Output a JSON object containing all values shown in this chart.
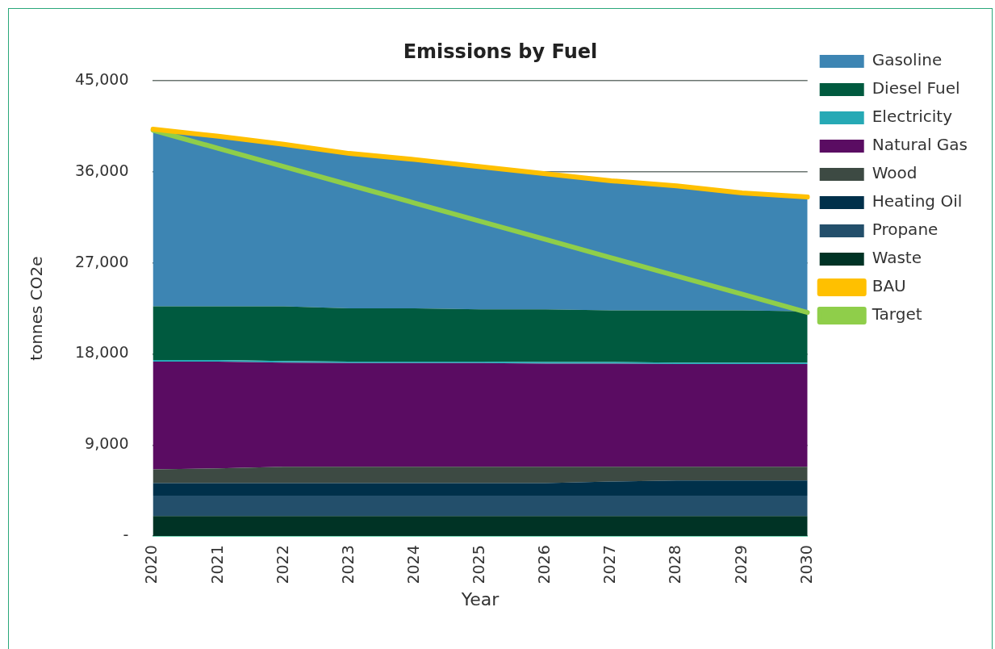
{
  "chart_data": {
    "type": "area",
    "stacked": true,
    "title": "Emissions by Fuel",
    "xlabel": "Year",
    "ylabel": "tonnes CO2e",
    "categories": [
      "2020",
      "2021",
      "2022",
      "2023",
      "2024",
      "2025",
      "2026",
      "2027",
      "2028",
      "2029",
      "2030"
    ],
    "ylim": [
      0,
      45000
    ],
    "yticks": [
      {
        "value": 0,
        "label": "-"
      },
      {
        "value": 9000,
        "label": "9,000"
      },
      {
        "value": 18000,
        "label": "18,000"
      },
      {
        "value": 27000,
        "label": "27,000"
      },
      {
        "value": 36000,
        "label": "36,000"
      },
      {
        "value": 45000,
        "label": "45,000"
      }
    ],
    "grid": "y",
    "legend": "right",
    "marker": "none",
    "series": [
      {
        "name": "Waste",
        "color": "#003325",
        "values": [
          2000,
          2000,
          2000,
          2000,
          2000,
          2000,
          2000,
          2000,
          2000,
          2000,
          2000
        ]
      },
      {
        "name": "Propane",
        "color": "#234f6b",
        "values": [
          2000,
          2000,
          2000,
          2000,
          2000,
          2000,
          2000,
          2000,
          2000,
          2000,
          2000
        ]
      },
      {
        "name": "Heating Oil",
        "color": "#00304a",
        "values": [
          1250,
          1250,
          1250,
          1250,
          1250,
          1250,
          1250,
          1400,
          1500,
          1500,
          1500
        ]
      },
      {
        "name": "Wood",
        "color": "#3d4a43",
        "values": [
          1350,
          1450,
          1600,
          1600,
          1600,
          1600,
          1600,
          1450,
          1350,
          1350,
          1350
        ]
      },
      {
        "name": "Natural Gas",
        "color": "#5a0c62",
        "values": [
          10650,
          10550,
          10300,
          10250,
          10250,
          10250,
          10200,
          10200,
          10150,
          10150,
          10150
        ]
      },
      {
        "name": "Electricity",
        "color": "#26a9b5",
        "values": [
          150,
          150,
          150,
          150,
          150,
          150,
          150,
          150,
          150,
          150,
          150
        ]
      },
      {
        "name": "Diesel Fuel",
        "color": "#005a3f",
        "values": [
          5300,
          5300,
          5400,
          5250,
          5250,
          5150,
          5200,
          5100,
          5150,
          5150,
          5050
        ]
      },
      {
        "name": "Gasoline",
        "color": "#3d85b3",
        "values": [
          17500,
          16800,
          16000,
          15300,
          14700,
          14100,
          13400,
          12800,
          12300,
          11600,
          11300
        ]
      },
      {
        "name": "BAU",
        "type": "line",
        "color": "#ffc000",
        "values": [
          40200,
          39500,
          38700,
          37800,
          37200,
          36500,
          35800,
          35100,
          34600,
          33900,
          33500
        ]
      },
      {
        "name": "Target",
        "type": "line",
        "color": "#8fce4a",
        "values": [
          40100,
          38300,
          36500,
          34700,
          32900,
          31100,
          29300,
          27500,
          25700,
          23900,
          22100
        ]
      }
    ]
  }
}
